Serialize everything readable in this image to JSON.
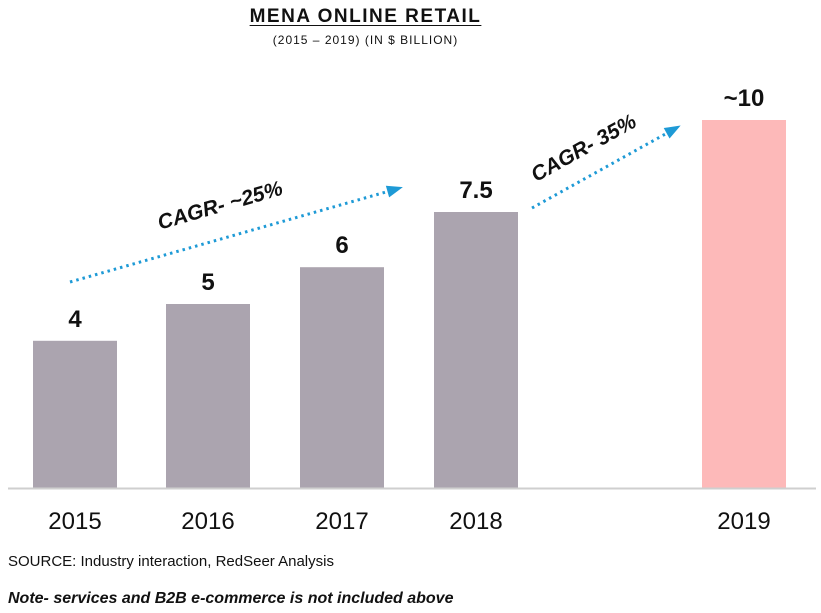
{
  "chart_data": {
    "type": "bar",
    "title": "MENA ONLINE RETAIL",
    "subtitle": "(2015 – 2019) (IN $ BILLION)",
    "categories": [
      "2015",
      "2016",
      "2017",
      "2018",
      "2019"
    ],
    "values": [
      4,
      5,
      6,
      7.5,
      10
    ],
    "value_labels": [
      "4",
      "5",
      "6",
      "7.5",
      "~10"
    ],
    "bar_colors": [
      "#aba4af",
      "#aba4af",
      "#aba4af",
      "#aba4af",
      "#fdb9b9"
    ],
    "ylim": [
      0,
      10
    ],
    "grid": false,
    "annotations": [
      {
        "text": "CAGR- ~25%",
        "from": "2015",
        "to": "2018"
      },
      {
        "text": "CAGR- 35%",
        "from": "2018",
        "to": "2019"
      }
    ],
    "arrow_color": "#1e9ad6"
  },
  "source": "SOURCE: Industry interaction, RedSeer Analysis",
  "note": "Note- services and B2B e-commerce is not included above"
}
